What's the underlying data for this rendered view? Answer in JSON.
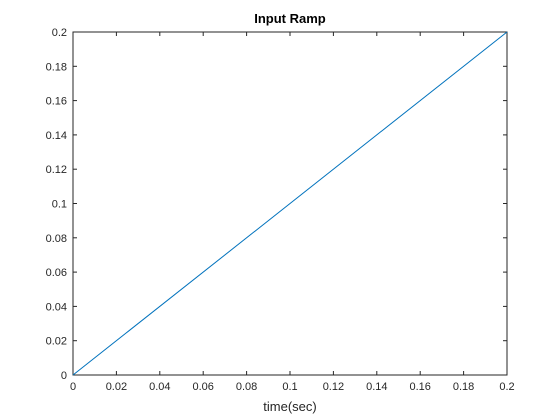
{
  "chart_data": {
    "type": "line",
    "title": "Input Ramp",
    "xlabel": "time(sec)",
    "ylabel": "",
    "xlim": [
      0,
      0.2
    ],
    "ylim": [
      0,
      0.2
    ],
    "xticks": [
      0,
      0.02,
      0.04,
      0.06,
      0.08,
      0.1,
      0.12,
      0.14,
      0.16,
      0.18,
      0.2
    ],
    "yticks": [
      0,
      0.02,
      0.04,
      0.06,
      0.08,
      0.1,
      0.12,
      0.14,
      0.16,
      0.18,
      0.2
    ],
    "xtick_labels": [
      "0",
      "0.02",
      "0.04",
      "0.06",
      "0.08",
      "0.1",
      "0.12",
      "0.14",
      "0.16",
      "0.18",
      "0.2"
    ],
    "ytick_labels": [
      "0",
      "0.02",
      "0.04",
      "0.06",
      "0.08",
      "0.1",
      "0.12",
      "0.14",
      "0.16",
      "0.18",
      "0.2"
    ],
    "grid": false,
    "series": [
      {
        "x": [
          0,
          0.2
        ],
        "y": [
          0,
          0.2
        ],
        "color": "#0072BD"
      }
    ]
  }
}
